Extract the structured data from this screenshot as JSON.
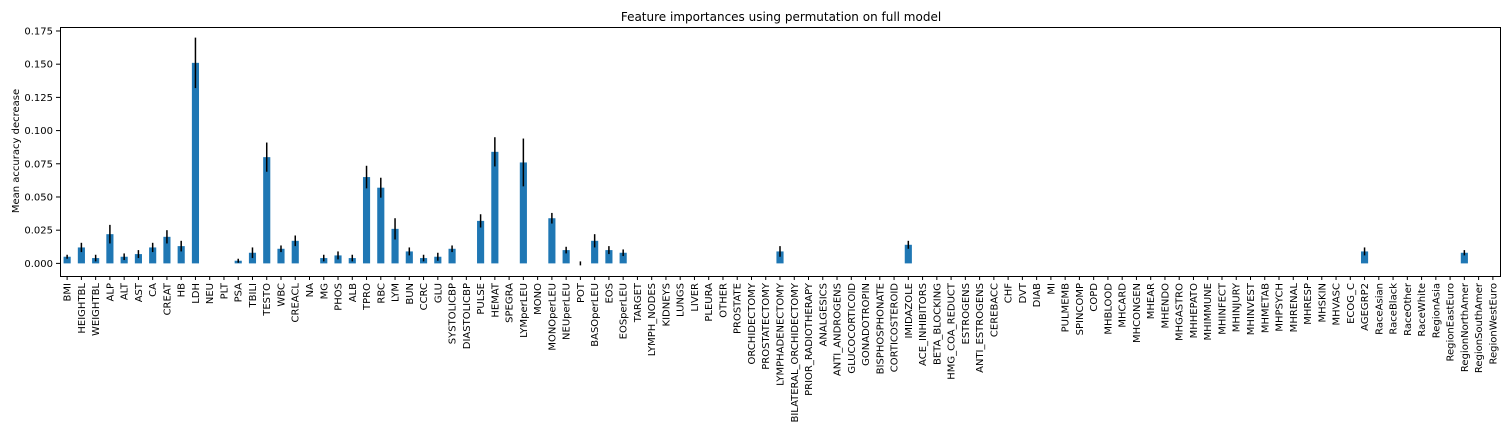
{
  "chart_data": {
    "type": "bar",
    "title": "Feature importances using permutation on full model",
    "xlabel": "",
    "ylabel": "Mean accuracy decrease",
    "ylim": [
      -0.0095,
      0.178
    ],
    "yticks": [
      0.0,
      0.025,
      0.05,
      0.075,
      0.1,
      0.125,
      0.15,
      0.175
    ],
    "ytick_labels": [
      "0.000",
      "0.025",
      "0.050",
      "0.075",
      "0.100",
      "0.125",
      "0.150",
      "0.175"
    ],
    "grid": false,
    "legend": "none",
    "bar_color": "#1f77b4",
    "error_color": "#000000",
    "categories": [
      "BMI",
      "HEIGHTBL",
      "WEIGHTBL",
      "ALP",
      "ALT",
      "AST",
      "CA",
      "CREAT",
      "HB",
      "LDH",
      "NEU",
      "PLT",
      "PSA",
      "TBILI",
      "TESTO",
      "WBC",
      "CREACL",
      "NA",
      "MG",
      "PHOS",
      "ALB",
      "TPRO",
      "RBC",
      "LYM",
      "BUN",
      "CCRC",
      "GLU",
      "SYSTOLICBP",
      "DIASTOLICBP",
      "PULSE",
      "HEMAT",
      "SPEGRA",
      "LYMperLEU",
      "MONO",
      "MONOperLEU",
      "NEUperLEU",
      "POT",
      "BASOperLEU",
      "EOS",
      "EOSperLEU",
      "TARGET",
      "LYMPH_NODES",
      "KIDNEYS",
      "LUNGS",
      "LIVER",
      "PLEURA",
      "OTHER",
      "PROSTATE",
      "ORCHIDECTOMY",
      "PROSTATECTOMY",
      "LYMPHADENECTOMY",
      "BILATERAL_ORCHIDECTOMY",
      "PRIOR_RADIOTHERAPY",
      "ANALGESICS",
      "ANTI_ANDROGENS",
      "GLUCOCORTICOID",
      "GONADOTROPIN",
      "BISPHOSPHONATE",
      "CORTICOSTEROID",
      "IMIDAZOLE",
      "ACE_INHIBITORS",
      "BETA_BLOCKING",
      "HMG_COA_REDUCT",
      "ESTROGENS",
      "ANTI_ESTROGENS",
      "CEREBACC",
      "CHF",
      "DVT",
      "DIAB",
      "MI",
      "PULMEMB",
      "SPINCOMP",
      "COPD",
      "MHBLOOD",
      "MHCARD",
      "MHCONGEN",
      "MHEAR",
      "MHENDO",
      "MHGASTRO",
      "MHHEPATO",
      "MHIMMUNE",
      "MHINFECT",
      "MHINJURY",
      "MHINVEST",
      "MHMETAB",
      "MHPSYCH",
      "MHRENAL",
      "MHRESP",
      "MHSKIN",
      "MHVASC",
      "ECOG_C",
      "AGEGRP2",
      "RaceAsian",
      "RaceBlack",
      "RaceOther",
      "RaceWhite",
      "RegionAsia",
      "RegionEastEuro",
      "RegionNorthAmer",
      "RegionSouthAmer",
      "RegionWestEuro"
    ],
    "values": [
      0.005,
      0.012,
      0.004,
      0.022,
      0.005,
      0.007,
      0.012,
      0.02,
      0.013,
      0.151,
      0,
      0,
      0.002,
      0.008,
      0.08,
      0.011,
      0.017,
      0,
      0.004,
      0.006,
      0.004,
      0.065,
      0.057,
      0.026,
      0.009,
      0.004,
      0.005,
      0.011,
      0,
      0.032,
      0.084,
      0,
      0.076,
      0,
      0.034,
      0.01,
      0,
      0.017,
      0.01,
      0.008,
      0,
      0,
      0,
      0,
      0,
      0,
      0,
      0,
      0,
      0,
      0.009,
      0,
      0,
      0,
      0,
      0,
      0,
      0,
      0,
      0.014,
      0,
      0,
      0,
      0,
      0,
      0,
      0,
      0,
      0,
      0,
      0,
      0,
      0,
      0,
      0,
      0,
      0,
      0,
      0,
      0,
      0,
      0,
      0,
      0,
      0,
      0,
      0,
      0,
      0,
      0,
      0,
      0.009,
      0,
      0,
      0,
      0,
      0,
      0,
      0.008,
      0,
      0
    ],
    "errors": [
      0.0015,
      0.0035,
      0.0025,
      0.007,
      0.0025,
      0.003,
      0.0035,
      0.005,
      0.004,
      0.019,
      0,
      0,
      0.0015,
      0.004,
      0.011,
      0.0025,
      0.004,
      0,
      0.0025,
      0.003,
      0.0025,
      0.0085,
      0.0075,
      0.008,
      0.003,
      0.0025,
      0.003,
      0.0025,
      0,
      0.005,
      0.011,
      0,
      0.018,
      0,
      0.004,
      0.0025,
      0.0015,
      0.005,
      0.003,
      0.0025,
      0,
      0,
      0,
      0,
      0,
      0,
      0,
      0,
      0,
      0,
      0.004,
      0,
      0,
      0,
      0,
      0,
      0,
      0,
      0,
      0.003,
      0,
      0,
      0,
      0,
      0,
      0,
      0,
      0,
      0,
      0,
      0,
      0,
      0,
      0,
      0,
      0,
      0,
      0,
      0,
      0,
      0,
      0,
      0,
      0,
      0,
      0,
      0,
      0,
      0,
      0,
      0,
      0.003,
      0,
      0,
      0,
      0,
      0,
      0,
      0.002,
      0,
      0
    ]
  }
}
